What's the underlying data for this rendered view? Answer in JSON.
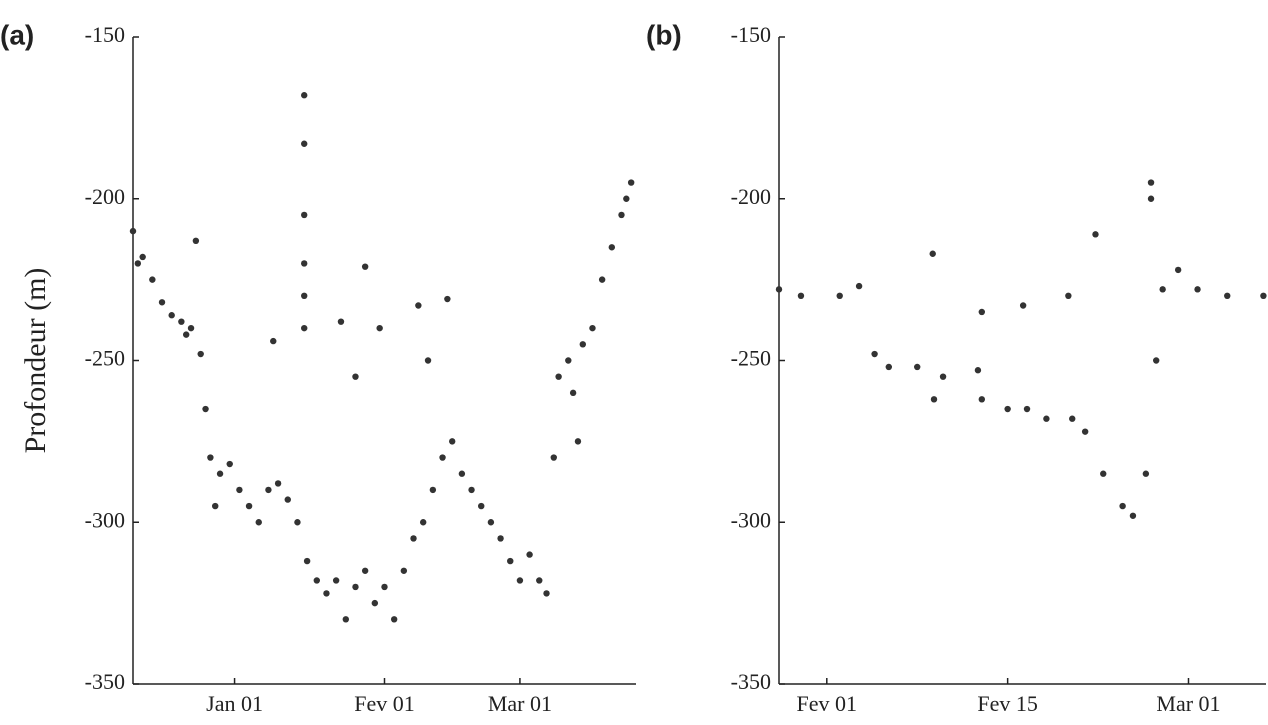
{
  "chart_data": [
    {
      "type": "scatter",
      "label": "(a)",
      "ylabel": "Profondeur (m)",
      "color": "#333333",
      "xlim": [
        -21,
        83
      ],
      "ylim": [
        -350,
        -150
      ],
      "xticks": [
        {
          "value": 0,
          "label": "Jan 01"
        },
        {
          "value": 31,
          "label": "Fev 01"
        },
        {
          "value": 59,
          "label": "Mar 01"
        }
      ],
      "yticks": [
        -350,
        -300,
        -250,
        -200,
        -150
      ],
      "x": [
        -21,
        -20,
        -19,
        -17,
        -15,
        -13,
        -11,
        -10,
        -9,
        -8,
        -7,
        -6,
        -5,
        -4,
        -3,
        -1,
        1,
        3,
        5,
        7,
        9,
        11,
        13,
        15,
        17,
        19,
        21,
        23,
        25,
        27,
        29,
        31,
        33,
        35,
        37,
        39,
        41,
        43,
        45,
        47,
        49,
        51,
        53,
        55,
        57,
        59,
        61,
        63,
        64.5,
        66,
        67,
        69,
        70,
        71,
        72,
        74,
        76,
        78,
        80,
        81,
        82,
        14.4,
        14.4,
        14.4,
        14.4,
        14.4,
        14.4,
        22,
        27,
        30,
        38,
        44,
        25,
        40,
        8
      ],
      "values": [
        -210,
        -220,
        -218,
        -225,
        -232,
        -236,
        -238,
        -242,
        -240,
        -213,
        -248,
        -265,
        -280,
        -295,
        -285,
        -282,
        -290,
        -295,
        -300,
        -290,
        -288,
        -293,
        -300,
        -312,
        -318,
        -322,
        -318,
        -330,
        -320,
        -315,
        -325,
        -320,
        -330,
        -315,
        -305,
        -300,
        -290,
        -280,
        -275,
        -285,
        -290,
        -295,
        -300,
        -305,
        -312,
        -318,
        -310,
        -318,
        -322,
        -280,
        -255,
        -250,
        -260,
        -275,
        -245,
        -240,
        -225,
        -215,
        -205,
        -200,
        -195,
        -168,
        -183,
        -205,
        -220,
        -230,
        -240,
        -238,
        -221,
        -240,
        -233,
        -231,
        -255,
        -250,
        -244
      ]
    },
    {
      "type": "scatter",
      "label": "(b)",
      "color": "#333333",
      "xlim": [
        27.3,
        65
      ],
      "ylim": [
        -350,
        -150
      ],
      "xticks": [
        {
          "value": 31,
          "label": "Fev 01"
        },
        {
          "value": 45,
          "label": "Fev 15"
        },
        {
          "value": 59,
          "label": "Mar 01"
        }
      ],
      "yticks": [
        -350,
        -300,
        -250,
        -200,
        -150
      ],
      "x": [
        27.3,
        29,
        32,
        33.5,
        34.7,
        35.8,
        38,
        39.3,
        40,
        42.7,
        43,
        45,
        46.5,
        48,
        50,
        51,
        52.4,
        53.9,
        54.7,
        55.7,
        56.5,
        57,
        58.2,
        59.7,
        62,
        64.8,
        39.2,
        51.8,
        56.1,
        56.1,
        46.2,
        49.7,
        43
      ],
      "values": [
        -228,
        -230,
        -230,
        -227,
        -248,
        -252,
        -252,
        -262,
        -255,
        -253,
        -262,
        -265,
        -265,
        -268,
        -268,
        -272,
        -285,
        -295,
        -298,
        -285,
        -250,
        -228,
        -222,
        -228,
        -230,
        -230,
        -217,
        -211,
        -195,
        -200,
        -233,
        -230,
        -235
      ]
    }
  ]
}
